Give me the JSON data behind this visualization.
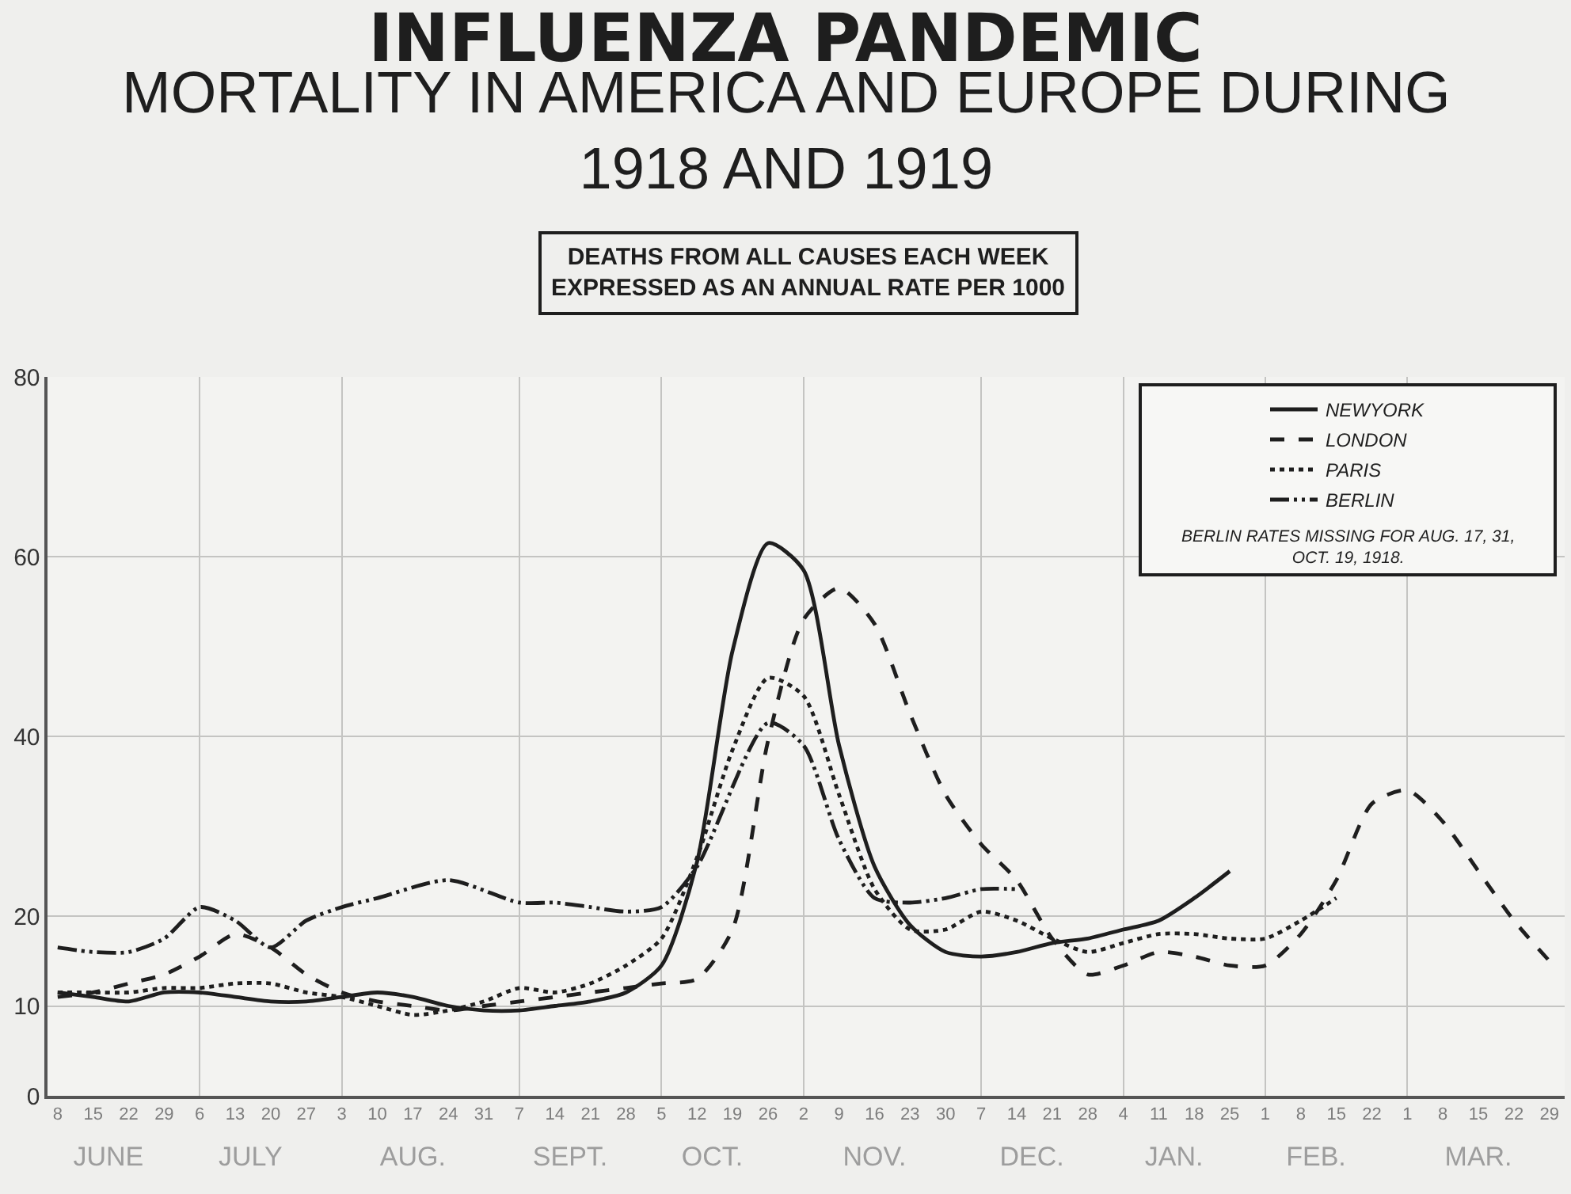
{
  "chart_data": {
    "type": "line",
    "title": "INFLUENZA PANDEMIC",
    "subtitle": "MORTALITY IN AMERICA AND EUROPE DURING 1918 AND 1919",
    "annotations": [
      "DEATHS FROM ALL CAUSES EACH WEEK EXPRESSED AS AN ANNUAL RATE PER 1000",
      "BERLIN RATES MISSING FOR AUG. 17, 31, OCT. 19, 1918."
    ],
    "xlim": [
      "1918-06-06",
      "1919-04-01"
    ],
    "xticks": [
      {
        "value": "1918-06-08",
        "label": "8"
      },
      {
        "value": "1918-06-15",
        "label": "15"
      },
      {
        "value": "1918-06-22",
        "label": "22"
      },
      {
        "value": "1918-06-29",
        "label": "29"
      },
      {
        "value": "1918-07-06",
        "label": "6"
      },
      {
        "value": "1918-07-13",
        "label": "13"
      },
      {
        "value": "1918-07-20",
        "label": "20"
      },
      {
        "value": "1918-07-27",
        "label": "27"
      },
      {
        "value": "1918-08-03",
        "label": "3"
      },
      {
        "value": "1918-08-10",
        "label": "10"
      },
      {
        "value": "1918-08-17",
        "label": "17"
      },
      {
        "value": "1918-08-24",
        "label": "24"
      },
      {
        "value": "1918-08-31",
        "label": "31"
      },
      {
        "value": "1918-09-07",
        "label": "7"
      },
      {
        "value": "1918-09-14",
        "label": "14"
      },
      {
        "value": "1918-09-21",
        "label": "21"
      },
      {
        "value": "1918-09-28",
        "label": "28"
      },
      {
        "value": "1918-10-05",
        "label": "5"
      },
      {
        "value": "1918-10-12",
        "label": "12"
      },
      {
        "value": "1918-10-19",
        "label": "19"
      },
      {
        "value": "1918-10-26",
        "label": "26"
      },
      {
        "value": "1918-11-02",
        "label": "2"
      },
      {
        "value": "1918-11-09",
        "label": "9"
      },
      {
        "value": "1918-11-16",
        "label": "16"
      },
      {
        "value": "1918-11-23",
        "label": "23"
      },
      {
        "value": "1918-11-30",
        "label": "30"
      },
      {
        "value": "1918-12-07",
        "label": "7"
      },
      {
        "value": "1918-12-14",
        "label": "14"
      },
      {
        "value": "1918-12-21",
        "label": "21"
      },
      {
        "value": "1918-12-28",
        "label": "28"
      },
      {
        "value": "1919-01-04",
        "label": "4"
      },
      {
        "value": "1919-01-11",
        "label": "11"
      },
      {
        "value": "1919-01-18",
        "label": "18"
      },
      {
        "value": "1919-01-25",
        "label": "25"
      },
      {
        "value": "1919-02-01",
        "label": "1"
      },
      {
        "value": "1919-02-08",
        "label": "8"
      },
      {
        "value": "1919-02-15",
        "label": "15"
      },
      {
        "value": "1919-02-22",
        "label": "22"
      },
      {
        "value": "1919-03-01",
        "label": "1"
      },
      {
        "value": "1919-03-08",
        "label": "8"
      },
      {
        "value": "1919-03-15",
        "label": "15"
      },
      {
        "value": "1919-03-22",
        "label": "22"
      },
      {
        "value": "1919-03-29",
        "label": "29"
      }
    ],
    "x2lim": [
      "1918-06-06",
      "1919-04-01"
    ],
    "x2ticks": [
      {
        "value": "1918-06-18",
        "label": "JUNE"
      },
      {
        "value": "1918-07-06",
        "label": null
      },
      {
        "value": "1918-07-16",
        "label": "JULY"
      },
      {
        "value": "1918-08-03",
        "label": null
      },
      {
        "value": "1918-08-17",
        "label": "AUG."
      },
      {
        "value": "1918-09-07",
        "label": null
      },
      {
        "value": "1918-09-17",
        "label": "SEPT."
      },
      {
        "value": "1918-10-05",
        "label": null
      },
      {
        "value": "1918-10-15",
        "label": "OCT."
      },
      {
        "value": "1918-11-02",
        "label": null
      },
      {
        "value": "1918-11-16",
        "label": "NOV."
      },
      {
        "value": "1918-12-07",
        "label": null
      },
      {
        "value": "1918-12-17",
        "label": "DEC."
      },
      {
        "value": "1919-01-04",
        "label": null
      },
      {
        "value": "1919-01-14",
        "label": "JAN."
      },
      {
        "value": "1919-02-01",
        "label": null
      },
      {
        "value": "1919-02-11",
        "label": "FEB."
      },
      {
        "value": "1919-03-01",
        "label": null
      },
      {
        "value": "1919-03-15",
        "label": "MAR."
      }
    ],
    "ylim": [
      0,
      80
    ],
    "yticks": [
      0,
      10,
      20,
      40,
      60,
      80
    ],
    "grid": true,
    "legend": "top right",
    "series": [
      {
        "name": "NEWYORK",
        "color": "#1e1e1e",
        "line_style": "solid",
        "x": [
          "1918-06-08",
          "1918-06-15",
          "1918-06-22",
          "1918-06-29",
          "1918-07-06",
          "1918-07-13",
          "1918-07-20",
          "1918-07-27",
          "1918-08-03",
          "1918-08-10",
          "1918-08-17",
          "1918-08-24",
          "1918-08-31",
          "1918-09-07",
          "1918-09-14",
          "1918-09-21",
          "1918-09-28",
          "1918-10-05",
          "1918-10-12",
          "1918-10-19",
          "1918-10-26",
          "1918-11-02",
          "1918-11-09",
          "1918-11-16",
          "1918-11-23",
          "1918-11-30",
          "1918-12-07",
          "1918-12-14",
          "1918-12-21",
          "1918-12-28",
          "1919-01-04",
          "1919-01-11",
          "1919-01-18",
          "1919-01-25"
        ],
        "values": [
          11.5,
          11,
          10.5,
          11.5,
          11.5,
          11,
          10.5,
          10.5,
          11,
          11.5,
          11,
          10,
          9.5,
          9.5,
          10,
          10.5,
          11.5,
          14.5,
          26,
          49.5,
          61.5,
          58.5,
          39,
          25.5,
          19,
          16,
          15.5,
          16,
          17,
          17.5,
          18.5,
          19.5,
          22,
          25
        ]
      },
      {
        "name": "LONDON",
        "color": "#1e1e1e",
        "line_style": "dashed",
        "x": [
          "1918-06-08",
          "1918-06-15",
          "1918-06-22",
          "1918-06-29",
          "1918-07-06",
          "1918-07-13",
          "1918-07-20",
          "1918-07-27",
          "1918-08-03",
          "1918-08-10",
          "1918-08-17",
          "1918-08-24",
          "1918-08-31",
          "1918-09-07",
          "1918-09-14",
          "1918-09-21",
          "1918-09-28",
          "1918-10-05",
          "1918-10-12",
          "1918-10-19",
          "1918-10-26",
          "1918-11-02",
          "1918-11-09",
          "1918-11-16",
          "1918-11-23",
          "1918-11-30",
          "1918-12-07",
          "1918-12-14",
          "1918-12-21",
          "1918-12-28",
          "1919-01-04",
          "1919-01-11",
          "1919-01-18",
          "1919-01-25",
          "1919-02-01",
          "1919-02-08",
          "1919-02-15",
          "1919-02-22",
          "1919-03-01",
          "1919-03-08",
          "1919-03-15",
          "1919-03-22",
          "1919-03-29"
        ],
        "values": [
          11,
          11.5,
          12.5,
          13.5,
          15.5,
          18,
          16.5,
          13.5,
          11.5,
          10.5,
          10,
          9.5,
          10,
          10.5,
          11,
          11.5,
          12,
          12.5,
          13,
          18.5,
          39.5,
          53,
          56.5,
          52.5,
          42.5,
          33.5,
          28,
          24,
          17.5,
          13.5,
          14.5,
          16,
          15.5,
          14.5,
          14.5,
          18,
          24,
          32.5,
          34,
          30.5,
          25,
          19.5,
          15
        ]
      },
      {
        "name": "PARIS",
        "color": "#1e1e1e",
        "line_style": "dotted",
        "x": [
          "1918-06-08",
          "1918-06-15",
          "1918-06-22",
          "1918-06-29",
          "1918-07-06",
          "1918-07-13",
          "1918-07-20",
          "1918-07-27",
          "1918-08-03",
          "1918-08-10",
          "1918-08-17",
          "1918-08-24",
          "1918-08-31",
          "1918-09-07",
          "1918-09-14",
          "1918-09-21",
          "1918-09-28",
          "1918-10-05",
          "1918-10-12",
          "1918-10-19",
          "1918-10-26",
          "1918-11-02",
          "1918-11-09",
          "1918-11-16",
          "1918-11-23",
          "1918-11-30",
          "1918-12-07",
          "1918-12-14",
          "1918-12-21",
          "1918-12-28",
          "1919-01-04",
          "1919-01-11",
          "1919-01-18",
          "1919-01-25",
          "1919-02-01",
          "1919-02-08",
          "1919-02-15"
        ],
        "values": [
          11.5,
          11.5,
          11.5,
          12,
          12,
          12.5,
          12.5,
          11.5,
          11,
          10,
          9,
          9.5,
          10.5,
          12,
          11.5,
          12.5,
          14.5,
          17.5,
          26.5,
          38.5,
          46.5,
          44.5,
          33.5,
          23,
          18.5,
          18.5,
          20.5,
          19.5,
          17.5,
          16,
          17,
          18,
          18,
          17.5,
          17.5,
          19.5,
          22
        ]
      },
      {
        "name": "BERLIN",
        "color": "#1e1e1e",
        "line_style": "dashdot",
        "x": [
          "1918-06-08",
          "1918-06-15",
          "1918-06-22",
          "1918-06-29",
          "1918-07-06",
          "1918-07-13",
          "1918-07-20",
          "1918-07-27",
          "1918-08-03",
          "1918-08-10",
          "1918-08-17",
          "1918-08-24",
          "1918-08-31",
          "1918-09-07",
          "1918-09-14",
          "1918-09-21",
          "1918-09-28",
          "1918-10-05",
          "1918-10-12",
          "1918-10-19",
          "1918-10-26",
          "1918-11-02",
          "1918-11-09",
          "1918-11-16",
          "1918-11-23",
          "1918-11-30",
          "1918-12-07",
          "1918-12-14"
        ],
        "values": [
          16.5,
          16,
          16,
          17.5,
          21,
          19.5,
          16.5,
          19.5,
          21,
          22,
          null,
          24,
          null,
          21.5,
          21.5,
          21,
          20.5,
          21,
          25.5,
          null,
          41.5,
          39,
          28.5,
          22,
          21.5,
          22,
          23,
          23
        ]
      }
    ]
  }
}
